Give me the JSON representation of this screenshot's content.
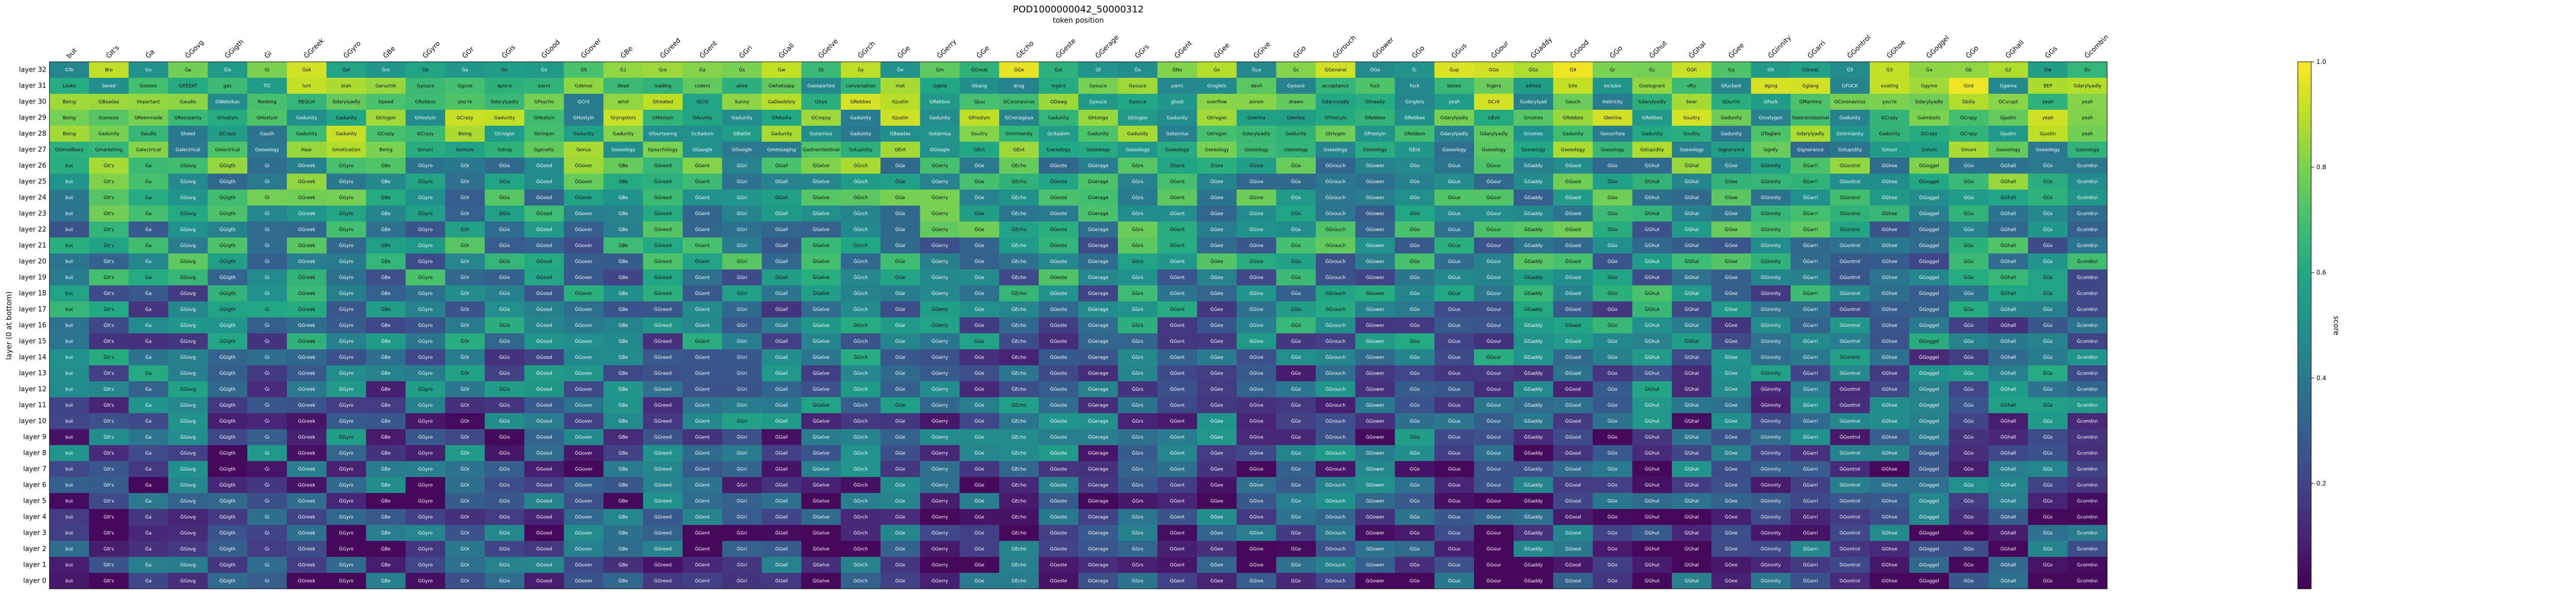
{
  "chart_data": {
    "type": "heatmap",
    "title": "POD1000000042_50000312",
    "xlabel": "token position",
    "ylabel": "layer (0 at bottom)",
    "colorbar_label": "score",
    "colorbar_ticks": [
      "0.2",
      "0.4",
      "0.6",
      "0.8",
      "1.0"
    ],
    "colormap": "viridis",
    "zlim": [
      0,
      1
    ],
    "x_tokens": [
      "but",
      "ĠIt's",
      "Ġa",
      "ĠGovg",
      "ĠGigth",
      "Ġi",
      "ĠGreek",
      "ĠGyro",
      "ĠBe",
      "ĠGyro",
      "ĠOr",
      "ĠGis",
      "ĠGood",
      "ĠGover",
      "ĠBe",
      "ĠGreed",
      "ĠGent",
      "ĠGri",
      "ĠGall",
      "ĠGelve",
      "ĠGrch",
      "ĠGe",
      "ĠGerry",
      "ĠGe",
      "ĠEcho",
      "ĠGeste",
      "ĠGerage",
      "ĠGrs",
      "ĠGent",
      "ĠGee",
      "ĠGive",
      "ĠGo",
      "ĠGrouch",
      "ĠGower",
      "ĠGo",
      "ĠGus",
      "ĠGour",
      "ĠGaddy",
      "ĠGood",
      "ĠGo",
      "ĠGhut",
      "ĠGhal",
      "ĠGee",
      "ĠGinnity",
      "ĠGarri",
      "ĠGontrol",
      "ĠGhoe",
      "ĠGoggel",
      "ĠGo",
      "ĠGhall",
      "ĠGs",
      "Ġcomb\\n"
    ],
    "y_layers": [
      "layer 32",
      "layer 31",
      "layer 30",
      "layer 29",
      "layer 28",
      "layer 27",
      "layer 26",
      "layer 25",
      "layer 24",
      "layer 23",
      "layer 22",
      "layer 21",
      "layer 20",
      "layer 19",
      "layer 18",
      "layer 17",
      "layer 16",
      "layer 15",
      "layer 14",
      "layer 13",
      "layer 12",
      "layer 11",
      "layer 10",
      "layer 9",
      "layer 8",
      "layer 7",
      "layer 6",
      "layer 5",
      "layer 4",
      "layer 3",
      "layer 2",
      "layer 1",
      "layer 0"
    ],
    "row_top": [
      [
        "ĠTo",
        "Bro",
        "Go",
        "Ġa",
        "Ġis",
        "Ġi",
        "Ġok",
        "Ġel",
        "Ġm",
        "Ġb",
        "Ġa",
        "Ġn",
        "Ġo",
        "ĠS",
        "Ġ1",
        "Ġre",
        "Ġa",
        "Ġs",
        "Ġw",
        "Ġt",
        "Ġy",
        "Ġe",
        "Ġm",
        "ĠGreat",
        "ĠGe",
        "Ġst",
        "Ġf",
        "Ġo",
        "ĠNo",
        "Ġx",
        "Ġca",
        "Ġc",
        "ĠGeneral",
        "ĠGo",
        "Ġ.",
        "Ġup",
        "ĠGo",
        "ĠGs",
        "Ġ9",
        "Ġr",
        "Ġc",
        "ĠGh",
        "Ġq",
        "Ġh",
        "ĠGreat",
        "Ġ5",
        "Ġ3",
        "Ġa",
        "Ġb",
        "Ġ2",
        "Ġw",
        "Ġv"
      ],
      [
        "Looks",
        "bored",
        "Goooos",
        "GRÉÉAT",
        "gas",
        "TiC",
        "lum",
        "blah",
        "Garuchik",
        "Gyouce",
        "Ggone",
        "aplero",
        "parni",
        "Gdense",
        "dead",
        "loading",
        "coders",
        "aked",
        "Gwhatsapp",
        "Gaooparted",
        "conversation",
        "mat",
        "Ggeta",
        "Gbang",
        "drug",
        "Ingers",
        "Gyouce",
        "Gyouce",
        "parni",
        "Ginglets",
        "devil",
        "Gyouce",
        "acceptance",
        "fuck",
        "fuck",
        "bones",
        "Ingers",
        "admos",
        "bite",
        "inclusiv",
        "Goologrant",
        "ofty",
        "Gfuckest",
        "dging",
        "Gglang",
        "GFUCK",
        "ovating",
        "Ggyms",
        "Gird",
        "Ggama",
        "BEP",
        "Gdarylyadly"
      ],
      [
        "Being",
        "GBaadas",
        "Important",
        "Gaudis",
        "GWebsbas",
        "Ronking",
        "REQUH",
        "Gdarylyadly",
        "Gpeed",
        "GRebbos",
        "you're",
        "Gdarylyadly",
        "GPsycho",
        "GCrit",
        "whol",
        "Gtreated",
        "GCrit",
        "Sunny",
        "GaDasiblely",
        "Gbye",
        "GRebbes",
        "Gjustin",
        "GRebbos",
        "GJuu",
        "GCoronavirus",
        "GDawg",
        "Gyouce",
        "Gyouce",
        "ghost",
        "overflow",
        "annon",
        "drawn",
        "Gdarylyadly",
        "Gtheady",
        "Ginglets",
        "yeah",
        "GCrit",
        "Gudarylyad",
        "Gauch",
        "metricity",
        "Gdarylyadly",
        "bear",
        "GDurtie",
        "GFuck",
        "GMamma",
        "GCoronavirus",
        "you're",
        "Gdarylyadly",
        "Gbilly",
        "GCurupt",
        "yeah",
        "yeah"
      ],
      [
        "Being",
        "Gianesio",
        "GReenmade",
        "GReorpanty",
        "GHostyin",
        "GHostyin",
        "Gadunity",
        "Gadunity",
        "Gtrivgon",
        "GHostyin",
        "GCrazy",
        "Gadunity",
        "GHostyin",
        "GHostyin",
        "Gryngstors",
        "GHostyin",
        "GAvunty",
        "Gadunity",
        "GRAudia",
        "GCropsy",
        "Gadunity",
        "Gjustin",
        "Gadunity",
        "GFrostyin",
        "GCronagoya",
        "Gadunity",
        "Ghtonga",
        "Gtrivgon",
        "Gadunity",
        "Gtrivgon",
        "Gkerina",
        "Gkerina",
        "GFrostyin",
        "GRebbox",
        "GRebbox",
        "Gdarylyadly",
        "GEvil",
        "Gnomes",
        "GRebbes",
        "Gkerina",
        "GRebbes",
        "Gsuitry",
        "Gadunity",
        "Gtostygon",
        "Gastrointestinal",
        "Gadunity",
        "GCrazy",
        "Gaimbolis",
        "GCrazy",
        "Gjustin",
        "yeah",
        "yeah"
      ],
      [
        "Being",
        "Gadunity",
        "Gaudis",
        "Shoed",
        "GCrazy",
        "Gauth",
        "Gadunity",
        "Gadunity",
        "GCrazy",
        "GCrazy",
        "Being",
        "Gtrivgon",
        "Gtrivgon",
        "Gadunity",
        "Gadunity",
        "Gfourteerng",
        "Gcitadom",
        "GBattle",
        "Gadunity",
        "Gotarnius",
        "Gadunity",
        "GBaadas",
        "Gotarnius",
        "Gsuitry",
        "Gintrnianity",
        "Gcitadom",
        "Gadunity",
        "Gadunity",
        "Gotarnius",
        "Gtrivgon",
        "Gdarylyadly",
        "Gadunity",
        "Gtrivgon",
        "GFrostyin",
        "GRebbon",
        "Gdarylyadly",
        "Gdarylyadly",
        "Gnomes",
        "Gadunity",
        "Gonorrhea",
        "Gadunity",
        "Gsuitry",
        "Gadunity",
        "GTaglaro",
        "Gdarylyadly",
        "Gintrnianity",
        "Gadunity",
        "GCrazy",
        "GCrazy",
        "Gjustin",
        "Gjustin",
        "yeah"
      ],
      [
        "Gtimvelbury",
        "Gmarketing",
        "Galectrical",
        "Galectrical",
        "Gelectrical",
        "Gsexology",
        "Haar",
        "Gmotivation",
        "Being",
        "Gmuni",
        "Gemuni",
        "Gdrug",
        "Ggenetic",
        "Gonus",
        "Gsexology",
        "Gpsychology",
        "GGoogle",
        "GGoogle",
        "Gmessaging",
        "Gastrointestinal",
        "Gstupidity",
        "GEnt",
        "GGoogle",
        "GEnt",
        "GEnt",
        "Gsexology",
        "Gsexology",
        "Gsexology",
        "Gsexology",
        "Gsexology",
        "Gsexology",
        "Gsexology",
        "Gsexology",
        "Gsexology",
        "GEnt",
        "Gsexology",
        "Gsexology",
        "Gsexology",
        "Gsexology",
        "Gsexology",
        "Gstupidity",
        "Gsexology",
        "Gignorance",
        "Ggolly",
        "Gignorance",
        "Gstupidity",
        "Gmuni",
        "Gmuni",
        "Gmuni",
        "Gsexology",
        "Gsexology",
        "Gsexology"
      ]
    ]
  }
}
